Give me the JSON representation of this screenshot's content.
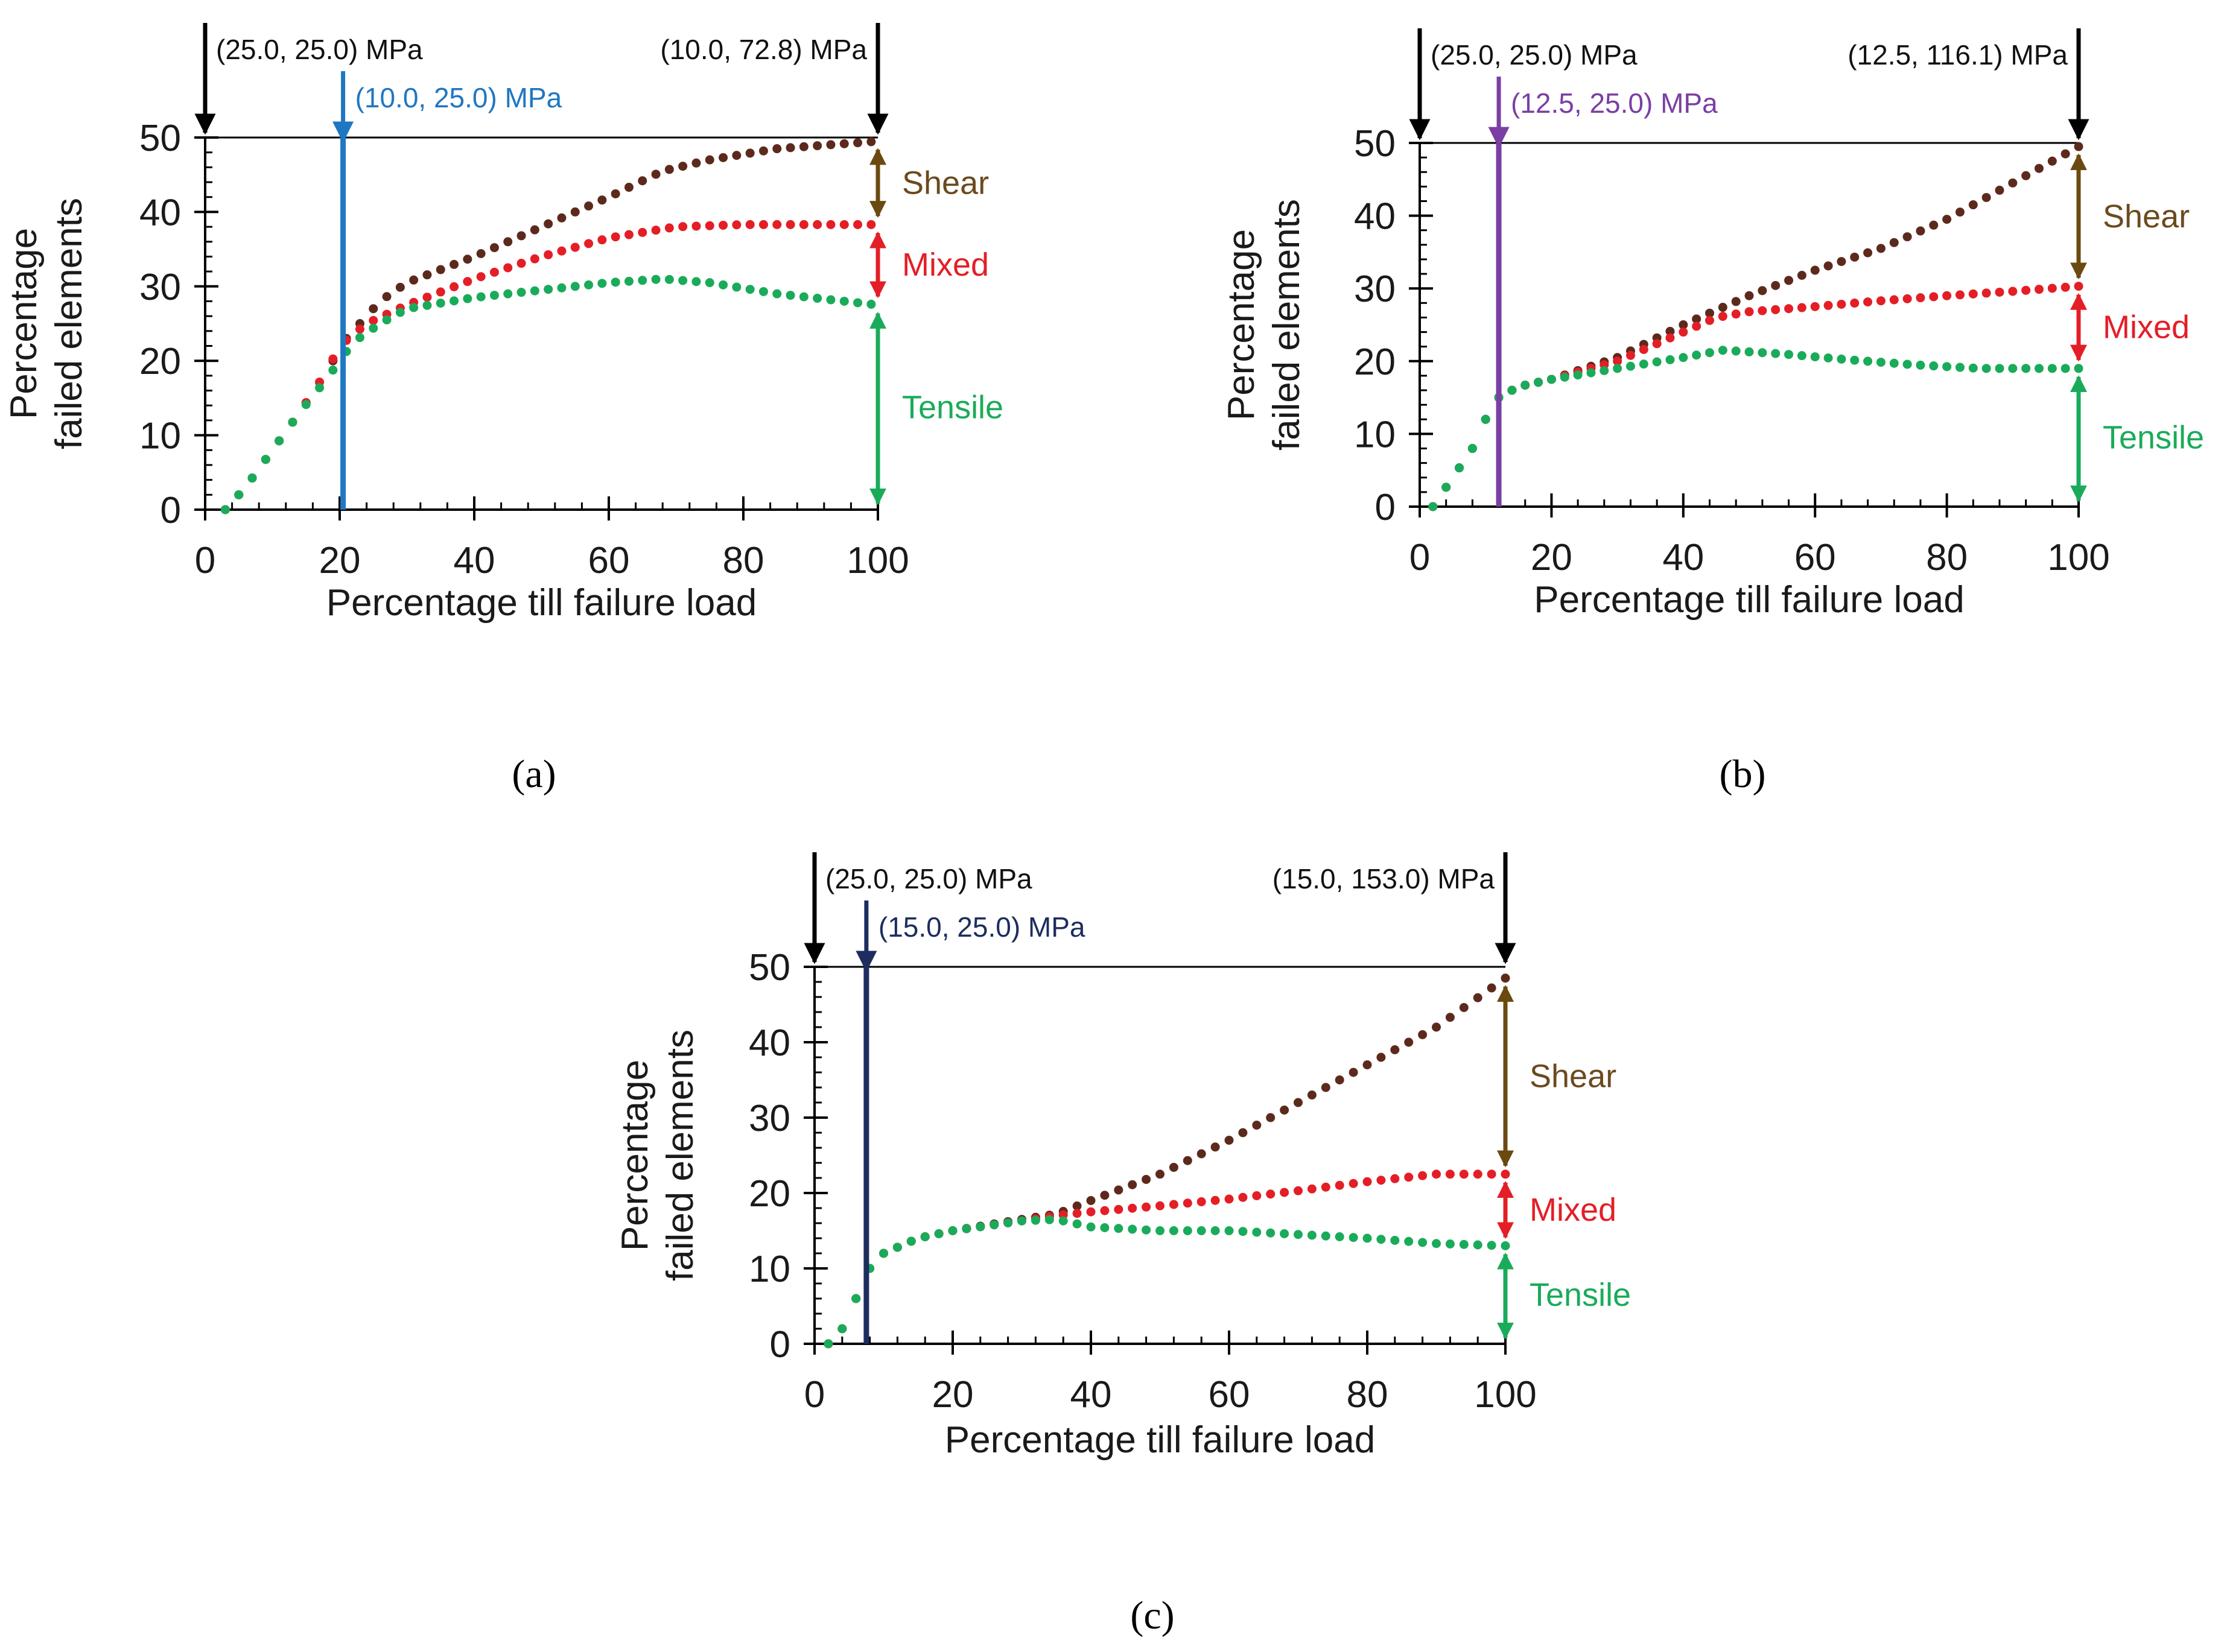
{
  "colors": {
    "axis": "#000000",
    "shear": "#5c2a1c",
    "mixed": "#e41e26",
    "tensile": "#1aab5a",
    "shear_label": "#6b4a1e",
    "shear_arrow": "#6b4a10",
    "mixed_label": "#e41e26",
    "tensile_label": "#1aab5a"
  },
  "chart_data": [
    {
      "type": "scatter",
      "panel_label": "(a)",
      "xlabel": "Percentage till failure load",
      "ylabel_line1": "Percentage",
      "ylabel_line2": "failed elements",
      "xlim": [
        0,
        100
      ],
      "ylim": [
        0,
        50
      ],
      "xticks": [
        0,
        20,
        40,
        60,
        80,
        100
      ],
      "yticks": [
        0,
        10,
        20,
        30,
        40,
        50
      ],
      "annotations": {
        "start": "(25.0, 25.0) MPa",
        "onset": "(10.0, 25.0) MPa",
        "end": "(10.0, 72.8) MPa",
        "onset_x": 20.5,
        "onset_color": "#1f77c2"
      },
      "bands": {
        "shear": "Shear",
        "mixed": "Mixed",
        "tensile": "Tensile"
      },
      "tensile_knots": [
        [
          3,
          0
        ],
        [
          6,
          3
        ],
        [
          10,
          8
        ],
        [
          14,
          13
        ],
        [
          18,
          17.5
        ],
        [
          20,
          20
        ],
        [
          22,
          22.5
        ],
        [
          26,
          25
        ],
        [
          30,
          27
        ],
        [
          40,
          28.5
        ],
        [
          50,
          29.5
        ],
        [
          60,
          30.5
        ],
        [
          68,
          31
        ],
        [
          75,
          30.5
        ],
        [
          85,
          29
        ],
        [
          100,
          27.5
        ]
      ],
      "mixed_knots": [
        [
          3,
          0
        ],
        [
          6,
          3
        ],
        [
          10,
          8
        ],
        [
          14,
          13
        ],
        [
          18,
          18.5
        ],
        [
          20,
          22
        ],
        [
          24,
          25
        ],
        [
          30,
          27.5
        ],
        [
          40,
          31
        ],
        [
          50,
          34
        ],
        [
          60,
          36.5
        ],
        [
          70,
          38
        ],
        [
          80,
          38.3
        ],
        [
          100,
          38.3
        ]
      ],
      "shear_knots": [
        [
          3,
          0
        ],
        [
          6,
          3
        ],
        [
          10,
          8
        ],
        [
          14,
          13
        ],
        [
          18,
          18.5
        ],
        [
          21,
          23
        ],
        [
          26,
          28
        ],
        [
          30,
          30.5
        ],
        [
          40,
          34
        ],
        [
          50,
          38
        ],
        [
          60,
          42
        ],
        [
          68,
          45.5
        ],
        [
          75,
          47
        ],
        [
          85,
          48.5
        ],
        [
          100,
          49.5
        ]
      ]
    },
    {
      "type": "scatter",
      "panel_label": "(b)",
      "xlabel": "Percentage till failure load",
      "ylabel_line1": "Percentage",
      "ylabel_line2": "failed elements",
      "xlim": [
        0,
        100
      ],
      "ylim": [
        0,
        50
      ],
      "xticks": [
        0,
        20,
        40,
        60,
        80,
        100
      ],
      "yticks": [
        0,
        10,
        20,
        30,
        40,
        50
      ],
      "annotations": {
        "start": "(25.0, 25.0) MPa",
        "onset": "(12.5, 25.0) MPa",
        "end": "(12.5, 116.1) MPa",
        "onset_x": 12,
        "onset_color": "#7a3fa3"
      },
      "bands": {
        "shear": "Shear",
        "mixed": "Mixed",
        "tensile": "Tensile"
      },
      "tensile_knots": [
        [
          2,
          0
        ],
        [
          5,
          4
        ],
        [
          8,
          8
        ],
        [
          10,
          12
        ],
        [
          12,
          15
        ],
        [
          15,
          16.5
        ],
        [
          20,
          17.5
        ],
        [
          30,
          19
        ],
        [
          40,
          20.5
        ],
        [
          46,
          21.5
        ],
        [
          55,
          21
        ],
        [
          65,
          20.2
        ],
        [
          75,
          19.5
        ],
        [
          85,
          19
        ],
        [
          100,
          19
        ]
      ],
      "mixed_knots": [
        [
          2,
          0
        ],
        [
          5,
          4
        ],
        [
          8,
          8
        ],
        [
          10,
          12
        ],
        [
          12,
          15
        ],
        [
          15,
          16.5
        ],
        [
          20,
          17.5
        ],
        [
          30,
          20
        ],
        [
          40,
          24
        ],
        [
          45,
          26
        ],
        [
          50,
          26.8
        ],
        [
          60,
          27.5
        ],
        [
          70,
          28.3
        ],
        [
          80,
          29
        ],
        [
          90,
          29.6
        ],
        [
          100,
          30.3
        ]
      ],
      "shear_knots": [
        [
          2,
          0
        ],
        [
          5,
          4
        ],
        [
          8,
          8
        ],
        [
          10,
          12
        ],
        [
          12,
          15
        ],
        [
          15,
          16.5
        ],
        [
          20,
          17.5
        ],
        [
          30,
          20.5
        ],
        [
          40,
          25
        ],
        [
          50,
          29
        ],
        [
          60,
          32.5
        ],
        [
          70,
          35.5
        ],
        [
          80,
          39.5
        ],
        [
          90,
          44.5
        ],
        [
          100,
          49.5
        ]
      ]
    },
    {
      "type": "scatter",
      "panel_label": "(c)",
      "xlabel": "Percentage till failure load",
      "ylabel_line1": "Percentage",
      "ylabel_line2": "failed elements",
      "xlim": [
        0,
        100
      ],
      "ylim": [
        0,
        50
      ],
      "xticks": [
        0,
        20,
        40,
        60,
        80,
        100
      ],
      "yticks": [
        0,
        10,
        20,
        30,
        40,
        50
      ],
      "annotations": {
        "start": "(25.0, 25.0) MPa",
        "onset": "(15.0, 25.0) MPa",
        "end": "(15.0, 153.0) MPa",
        "onset_x": 7.5,
        "onset_color": "#1c2d5e"
      },
      "bands": {
        "shear": "Shear",
        "mixed": "Mixed",
        "tensile": "Tensile"
      },
      "tensile_knots": [
        [
          2,
          0
        ],
        [
          4,
          2
        ],
        [
          6,
          6
        ],
        [
          8,
          10
        ],
        [
          10,
          12
        ],
        [
          15,
          14
        ],
        [
          20,
          15
        ],
        [
          30,
          16.3
        ],
        [
          35,
          16.5
        ],
        [
          40,
          15.5
        ],
        [
          50,
          15
        ],
        [
          60,
          15
        ],
        [
          70,
          14.5
        ],
        [
          80,
          14
        ],
        [
          90,
          13.3
        ],
        [
          100,
          13
        ]
      ],
      "mixed_knots": [
        [
          2,
          0
        ],
        [
          4,
          2
        ],
        [
          6,
          6
        ],
        [
          8,
          10
        ],
        [
          10,
          12
        ],
        [
          15,
          14
        ],
        [
          20,
          15
        ],
        [
          30,
          16.3
        ],
        [
          35,
          17
        ],
        [
          40,
          17.5
        ],
        [
          50,
          18.3
        ],
        [
          60,
          19.2
        ],
        [
          70,
          20.3
        ],
        [
          80,
          21.5
        ],
        [
          90,
          22.5
        ],
        [
          100,
          22.5
        ]
      ],
      "shear_knots": [
        [
          2,
          0
        ],
        [
          4,
          2
        ],
        [
          6,
          6
        ],
        [
          8,
          10
        ],
        [
          10,
          12
        ],
        [
          15,
          14
        ],
        [
          20,
          15
        ],
        [
          30,
          16.5
        ],
        [
          35,
          17.2
        ],
        [
          40,
          19
        ],
        [
          50,
          22.5
        ],
        [
          60,
          27
        ],
        [
          70,
          32
        ],
        [
          80,
          37
        ],
        [
          90,
          42
        ],
        [
          100,
          48.5
        ]
      ]
    }
  ]
}
